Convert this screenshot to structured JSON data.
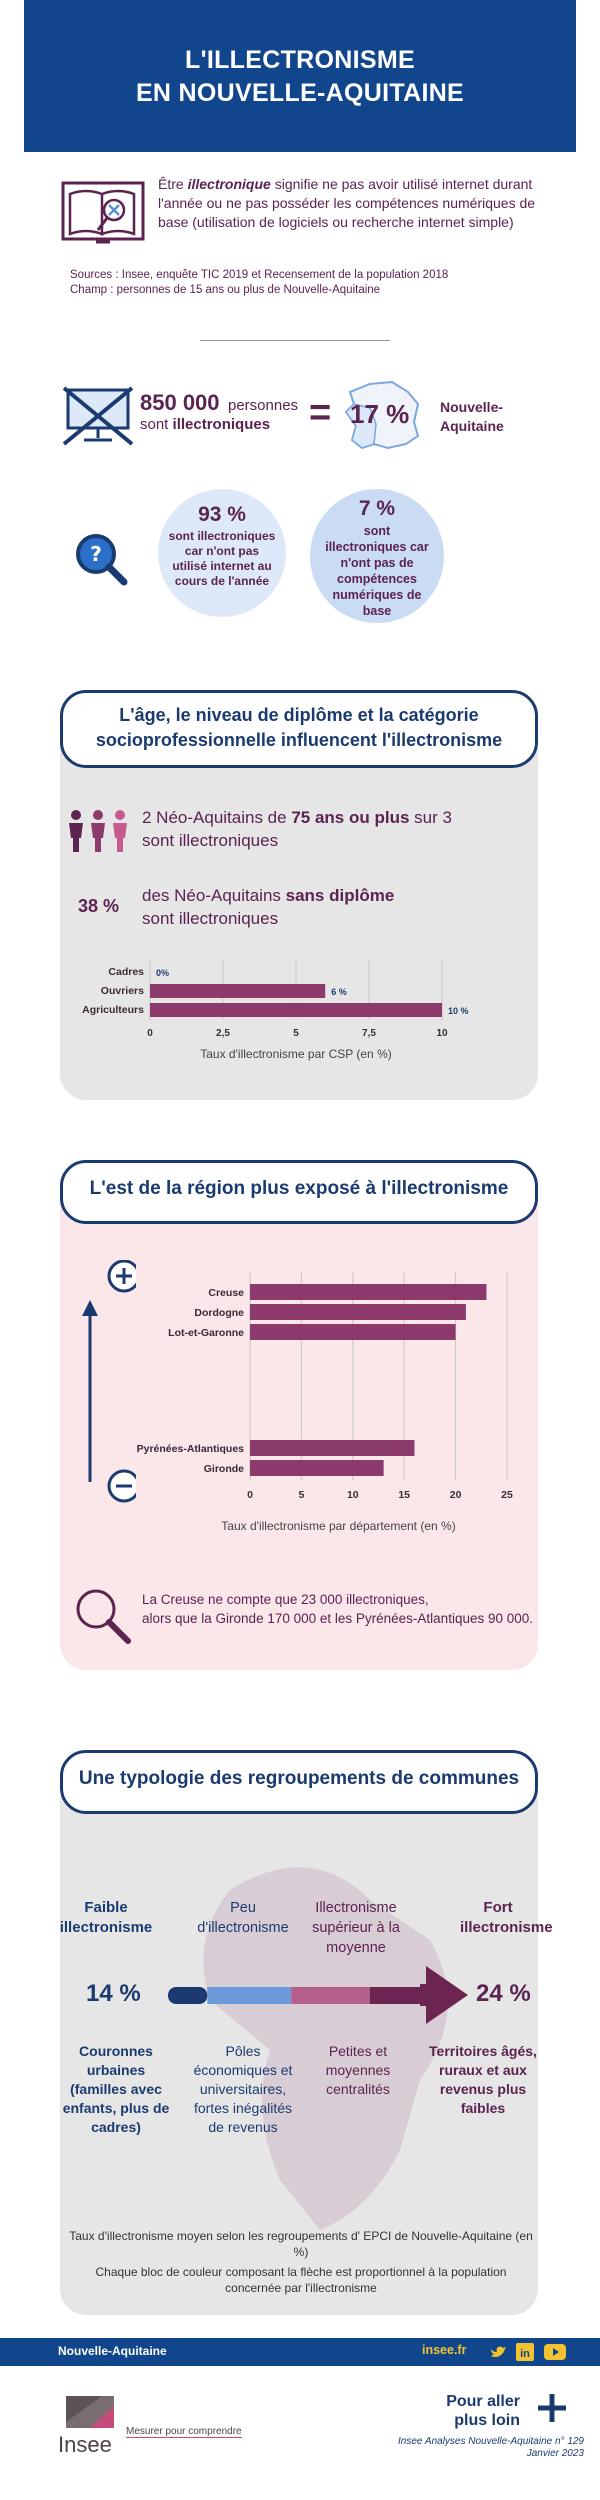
{
  "header": {
    "title_line1": "L'ILLECTRONISME",
    "title_line2": "EN NOUVELLE-AQUITAINE"
  },
  "definition": {
    "lead": "Être ",
    "term": "illectronique",
    "rest": " signifie ne pas avoir utilisé internet durant l'année ou ne pas posséder les compétences numériques de base (utilisation de logiciels ou recherche internet simple)"
  },
  "sources": {
    "line1": "Sources : Insee, enquête TIC 2019 et Recensement de la population 2018",
    "line2": "Champ : personnes de 15 ans ou plus de Nouvelle-Aquitaine"
  },
  "key_figure": {
    "count": "850 000",
    "persons": "personnes",
    "sont": "sont ",
    "illectroniques": "illectroniques",
    "equals": "=",
    "percent": "17 %",
    "region": "Nouvelle-Aquitaine"
  },
  "bubbles": [
    {
      "pct": "93 %",
      "text": "sont illectroniques car n'ont pas utilisé internet au cours de l'année"
    },
    {
      "pct": "7 %",
      "text": "sont illectroniques car n'ont pas de compétences numériques de base"
    }
  ],
  "section_age": {
    "title": "L'âge, le niveau de diplôme et la catégorie socioprofessionnelle influencent l'illectronisme",
    "stat1_a": "2 Néo-Aquitains de ",
    "stat1_b": "75 ans ou plus",
    "stat1_c": " sur 3 sont illectroniques",
    "stat2_pct": "38 %",
    "stat2_a": "des Néo-Aquitains ",
    "stat2_b": "sans diplôme",
    "stat2_c": "sont illectroniques"
  },
  "section_est": {
    "title": "L'est de la région plus exposé à l'illectronisme",
    "note_line1": "La Creuse ne compte que 23 000 illectroniques,",
    "note_line2": "alors que la Gironde 170 000 et les Pyrénées-Atlantiques 90 000."
  },
  "section_typo": {
    "title": "Une typologie des regroupements de communes",
    "label_low": "Faible illectronisme",
    "label_peu": "Peu d'illectronisme",
    "label_sup": "Illectronisme supérieur à la moyenne",
    "label_high": "Fort illectronisme",
    "pct_low": "14 %",
    "pct_high": "24 %",
    "cat1": "Couronnes urbaines (familles avec enfants, plus de cadres)",
    "cat2": "Pôles économiques et universitaires, fortes inégalités de revenus",
    "cat3": "Petites et moyennes centralités",
    "cat4": "Territoires âgés, ruraux et aux revenus plus faibles",
    "caption1": "Taux d'illectronisme moyen selon les regroupements d' EPCI de Nouvelle-Aquitaine (en %)",
    "caption2": "Chaque bloc de couleur composant la flèche est proportionnel à la population concernée par l'illectronisme",
    "arrow_segments": [
      {
        "share": 0.15,
        "color": "#1b3b70"
      },
      {
        "share": 0.32,
        "color": "#6a9ad8"
      },
      {
        "share": 0.3,
        "color": "#b5608c"
      },
      {
        "share": 0.23,
        "color": "#6b2550"
      }
    ]
  },
  "footer": {
    "region": "Nouvelle-Aquitaine",
    "site": "insee.fr",
    "logo_text": "Insee",
    "tagline": "Mesurer pour comprendre",
    "more1": "Pour aller",
    "more2": "plus loin",
    "pub1": "Insee Analyses Nouvelle-Aquitaine n° 129",
    "pub2": "Janvier 2023"
  },
  "colors": {
    "blue": "#12468c",
    "navy": "#1b3b70",
    "plum": "#8c3a6c",
    "grey_card": "#e6e6e6",
    "pink_card": "#fbe6ea"
  },
  "chart_data": [
    {
      "type": "bar",
      "orientation": "horizontal",
      "categories": [
        "Cadres",
        "Ouvriers",
        "Agriculteurs"
      ],
      "values": [
        0,
        6,
        10
      ],
      "value_labels": [
        "0%",
        "6 %",
        "10 %"
      ],
      "xlabel": "Taux d'illectronisme par CSP (en %)",
      "xlim": [
        0,
        10
      ],
      "ticks": [
        "0",
        "2,5",
        "5",
        "7,5",
        "10"
      ],
      "tick_values": [
        0,
        2.5,
        5,
        7.5,
        10
      ],
      "color": "#8c3a6c",
      "grid": true
    },
    {
      "type": "bar",
      "orientation": "horizontal",
      "categories": [
        "Creuse",
        "Dordogne",
        "Lot-et-Garonne",
        "Pyrénées-Atlantiques",
        "Gironde"
      ],
      "values": [
        23,
        21,
        20,
        16,
        13
      ],
      "xlabel": "Taux d'illectronisme par département (en %)",
      "xlim": [
        0,
        25
      ],
      "ticks": [
        "0",
        "5",
        "10",
        "15",
        "20",
        "25"
      ],
      "tick_values": [
        0,
        5,
        10,
        15,
        20,
        25
      ],
      "color": "#8c3a6c",
      "grid": true
    }
  ]
}
